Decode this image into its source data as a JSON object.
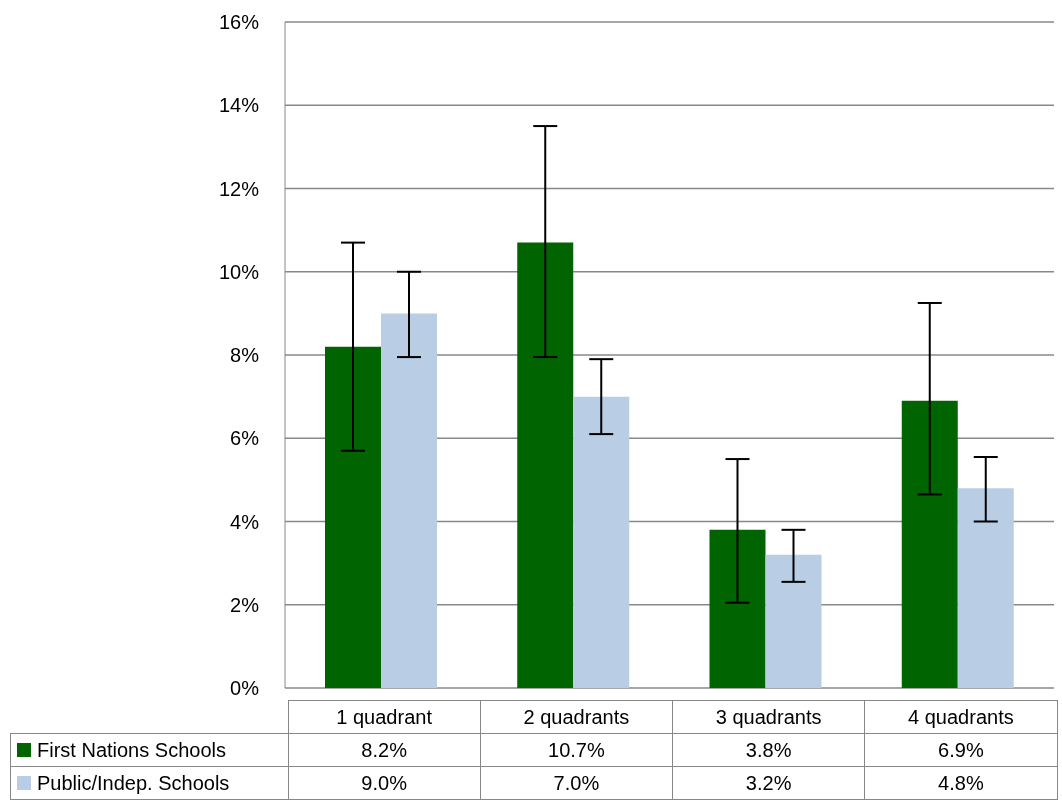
{
  "chart_data": {
    "type": "bar",
    "categories": [
      "1 quadrant",
      "2 quadrants",
      "3 quadrants",
      "4 quadrants"
    ],
    "series": [
      {
        "name": "First Nations Schools",
        "color": "#006400",
        "values": [
          8.2,
          10.7,
          3.8,
          6.9
        ],
        "value_labels": [
          "8.2%",
          "10.7%",
          "3.8%",
          "6.9%"
        ],
        "errors": [
          [
            5.7,
            10.7
          ],
          [
            7.95,
            13.5
          ],
          [
            2.05,
            5.5
          ],
          [
            4.65,
            9.25
          ]
        ]
      },
      {
        "name": "Public/Indep. Schools",
        "color": "#b9cde5",
        "values": [
          9.0,
          7.0,
          3.2,
          4.8
        ],
        "value_labels": [
          "9.0%",
          "7.0%",
          "3.2%",
          "4.8%"
        ],
        "errors": [
          [
            7.95,
            10.0
          ],
          [
            6.1,
            7.9
          ],
          [
            2.55,
            3.8
          ],
          [
            4.0,
            5.55
          ]
        ]
      }
    ],
    "ylim": [
      0,
      16
    ],
    "yticks": [
      {
        "value": 0,
        "label": "0%"
      },
      {
        "value": 2,
        "label": "2%"
      },
      {
        "value": 4,
        "label": "4%"
      },
      {
        "value": 6,
        "label": "6%"
      },
      {
        "value": 8,
        "label": "8%"
      },
      {
        "value": 10,
        "label": "10%"
      },
      {
        "value": 12,
        "label": "12%"
      },
      {
        "value": 14,
        "label": "14%"
      },
      {
        "value": 16,
        "label": "16%"
      }
    ],
    "grid": "y",
    "legend": "bottom"
  }
}
